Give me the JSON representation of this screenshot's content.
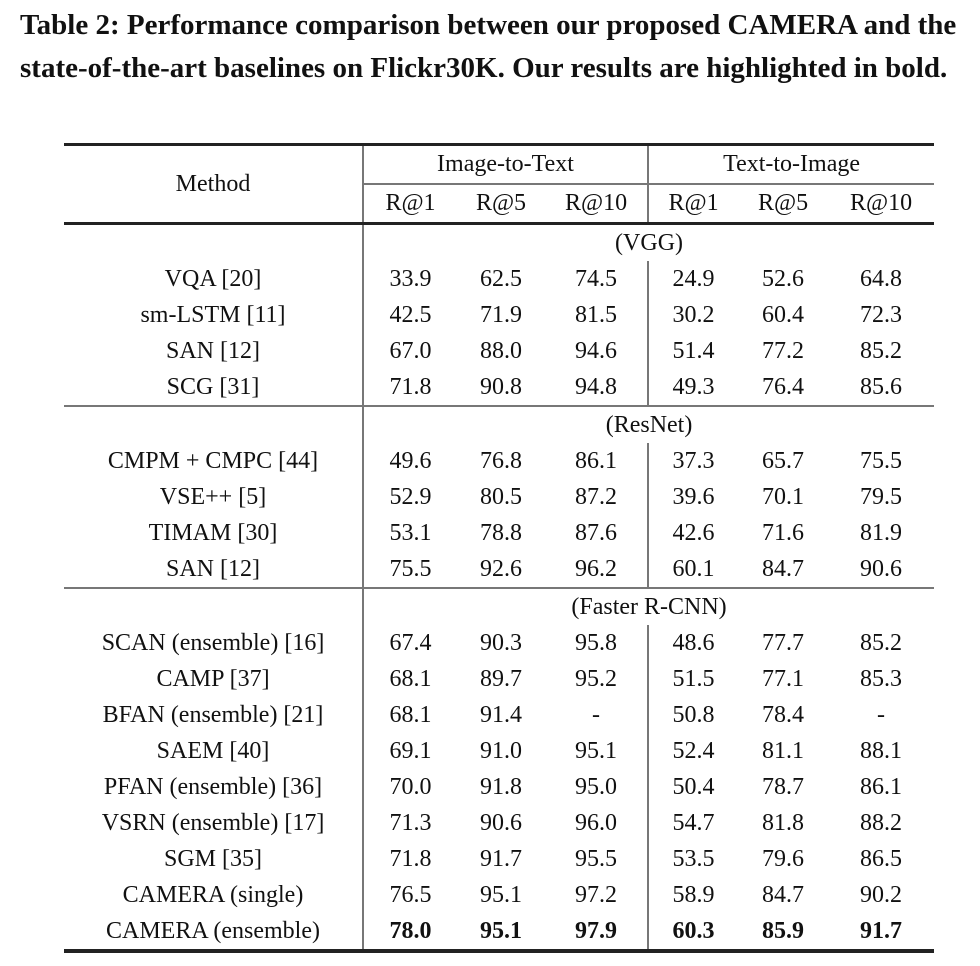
{
  "caption": "Table 2: Performance comparison between our proposed CAMERA and the state-of-the-art baselines on Flickr30K. Our results are highlighted in bold.",
  "table": {
    "method_header": "Method",
    "group_headers": [
      "Image-to-Text",
      "Text-to-Image"
    ],
    "metric_headers": [
      "R@1",
      "R@5",
      "R@10",
      "R@1",
      "R@5",
      "R@10"
    ],
    "sections": [
      {
        "label": "(VGG)",
        "rows": [
          {
            "method": "VQA [20]",
            "values": [
              "33.9",
              "62.5",
              "74.5",
              "24.9",
              "52.6",
              "64.8"
            ]
          },
          {
            "method": "sm-LSTM [11]",
            "values": [
              "42.5",
              "71.9",
              "81.5",
              "30.2",
              "60.4",
              "72.3"
            ]
          },
          {
            "method": "SAN [12]",
            "values": [
              "67.0",
              "88.0",
              "94.6",
              "51.4",
              "77.2",
              "85.2"
            ]
          },
          {
            "method": "SCG [31]",
            "values": [
              "71.8",
              "90.8",
              "94.8",
              "49.3",
              "76.4",
              "85.6"
            ]
          }
        ]
      },
      {
        "label": "(ResNet)",
        "rows": [
          {
            "method": "CMPM + CMPC [44]",
            "values": [
              "49.6",
              "76.8",
              "86.1",
              "37.3",
              "65.7",
              "75.5"
            ]
          },
          {
            "method": "VSE++ [5]",
            "values": [
              "52.9",
              "80.5",
              "87.2",
              "39.6",
              "70.1",
              "79.5"
            ]
          },
          {
            "method": "TIMAM [30]",
            "values": [
              "53.1",
              "78.8",
              "87.6",
              "42.6",
              "71.6",
              "81.9"
            ]
          },
          {
            "method": "SAN [12]",
            "values": [
              "75.5",
              "92.6",
              "96.2",
              "60.1",
              "84.7",
              "90.6"
            ]
          }
        ]
      },
      {
        "label": "(Faster R-CNN)",
        "rows": [
          {
            "method": "SCAN (ensemble) [16]",
            "values": [
              "67.4",
              "90.3",
              "95.8",
              "48.6",
              "77.7",
              "85.2"
            ]
          },
          {
            "method": "CAMP [37]",
            "values": [
              "68.1",
              "89.7",
              "95.2",
              "51.5",
              "77.1",
              "85.3"
            ]
          },
          {
            "method": "BFAN (ensemble) [21]",
            "values": [
              "68.1",
              "91.4",
              "-",
              "50.8",
              "78.4",
              "-"
            ]
          },
          {
            "method": "SAEM [40]",
            "values": [
              "69.1",
              "91.0",
              "95.1",
              "52.4",
              "81.1",
              "88.1"
            ]
          },
          {
            "method": "PFAN (ensemble) [36]",
            "values": [
              "70.0",
              "91.8",
              "95.0",
              "50.4",
              "78.7",
              "86.1"
            ]
          },
          {
            "method": "VSRN (ensemble) [17]",
            "values": [
              "71.3",
              "90.6",
              "96.0",
              "54.7",
              "81.8",
              "88.2"
            ]
          },
          {
            "method": "SGM [35]",
            "values": [
              "71.8",
              "91.7",
              "95.5",
              "53.5",
              "79.6",
              "86.5"
            ]
          },
          {
            "method": "CAMERA (single)",
            "values": [
              "76.5",
              "95.1",
              "97.2",
              "58.9",
              "84.7",
              "90.2"
            ]
          },
          {
            "method": "CAMERA (ensemble)",
            "values": [
              "78.0",
              "95.1",
              "97.9",
              "60.3",
              "85.9",
              "91.7"
            ],
            "bold": true
          }
        ]
      }
    ]
  }
}
